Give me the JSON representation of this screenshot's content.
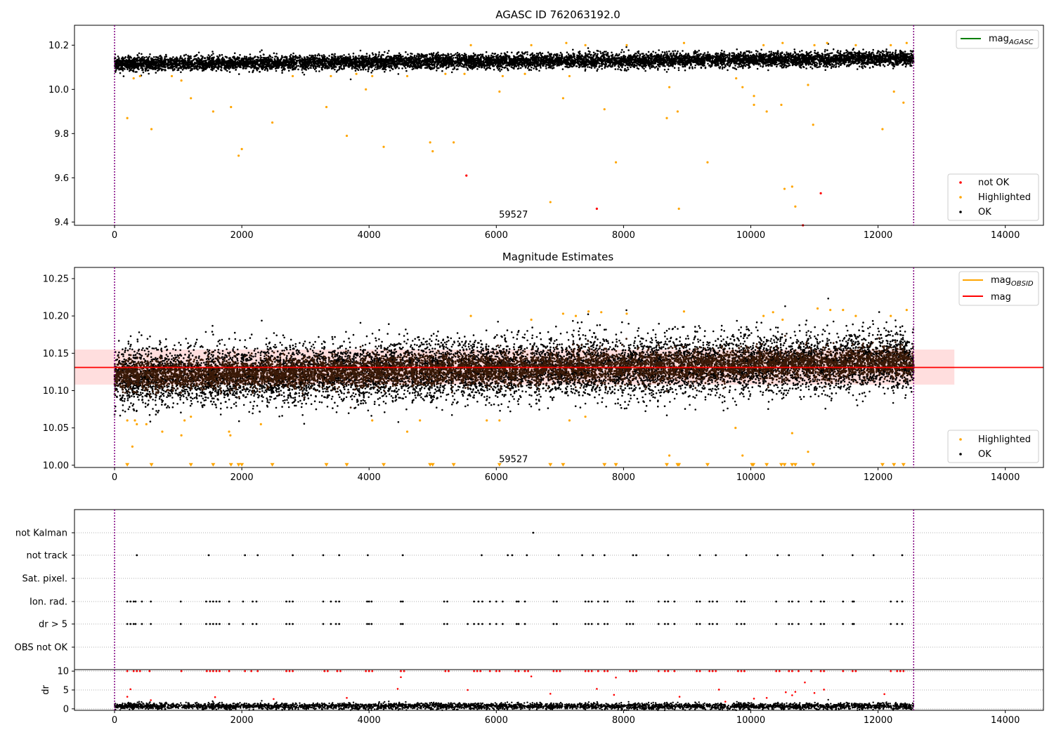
{
  "chart_data": [
    {
      "type": "scatter",
      "title": "AGASC ID 762063192.0",
      "xlabel": "",
      "ylabel": "",
      "xlim": [
        -630,
        14600
      ],
      "ylim": [
        9.385,
        10.29
      ],
      "xticks": [
        0,
        2000,
        4000,
        6000,
        8000,
        10000,
        12000,
        14000
      ],
      "yticks": [
        9.4,
        9.6,
        9.8,
        10.0,
        10.2
      ],
      "ytick_labels": [
        "9.4",
        "9.6",
        "9.8",
        "10.0",
        "10.2"
      ],
      "vlines": [
        0,
        12560
      ],
      "annotation": {
        "text": "59527",
        "x": 6270,
        "y": 9.42
      },
      "legend_lines": [
        {
          "label": "mag",
          "sub": "AGASC",
          "color": "#008000"
        }
      ],
      "legend_points": [
        {
          "label": "not OK",
          "color": "#ff0000"
        },
        {
          "label": "Highlighted",
          "color": "#ffa500"
        },
        {
          "label": "OK",
          "color": "#000000"
        }
      ],
      "ok_band": {
        "x_start": 0,
        "x_end": 12560,
        "center_start": 10.115,
        "center_end": 10.14,
        "sigma": 0.016,
        "count": 9000
      },
      "series": [
        {
          "name": "Highlighted",
          "color": "#ffa500",
          "points": [
            [
              200,
              9.87
            ],
            [
              580,
              9.82
            ],
            [
              1200,
              9.96
            ],
            [
              1550,
              9.9
            ],
            [
              1830,
              9.92
            ],
            [
              1950,
              9.7
            ],
            [
              2000,
              9.73
            ],
            [
              2480,
              9.85
            ],
            [
              3330,
              9.92
            ],
            [
              3650,
              9.79
            ],
            [
              3950,
              10.0
            ],
            [
              4230,
              9.74
            ],
            [
              4960,
              9.76
            ],
            [
              5000,
              9.72
            ],
            [
              5330,
              9.76
            ],
            [
              6050,
              9.99
            ],
            [
              6850,
              9.49
            ],
            [
              7050,
              9.96
            ],
            [
              7700,
              9.91
            ],
            [
              7880,
              9.67
            ],
            [
              8680,
              9.87
            ],
            [
              8720,
              10.01
            ],
            [
              8850,
              9.9
            ],
            [
              8870,
              9.46
            ],
            [
              9320,
              9.67
            ],
            [
              9770,
              10.05
            ],
            [
              9870,
              10.01
            ],
            [
              10050,
              9.97
            ],
            [
              10050,
              9.93
            ],
            [
              10250,
              9.9
            ],
            [
              10480,
              9.93
            ],
            [
              10530,
              9.55
            ],
            [
              10650,
              9.56
            ],
            [
              10700,
              9.47
            ],
            [
              10900,
              10.02
            ],
            [
              10980,
              9.84
            ],
            [
              12070,
              9.82
            ],
            [
              12250,
              9.99
            ],
            [
              12400,
              9.94
            ],
            [
              300,
              10.05
            ],
            [
              400,
              10.06
            ],
            [
              900,
              10.06
            ],
            [
              1050,
              10.04
            ],
            [
              2800,
              10.06
            ],
            [
              4050,
              10.06
            ],
            [
              5500,
              10.07
            ],
            [
              6450,
              10.07
            ],
            [
              7150,
              10.06
            ],
            [
              5600,
              10.2
            ],
            [
              6550,
              10.2
            ],
            [
              7100,
              10.21
            ],
            [
              7400,
              10.2
            ],
            [
              8050,
              10.2
            ],
            [
              8950,
              10.21
            ],
            [
              10200,
              10.2
            ],
            [
              10500,
              10.21
            ],
            [
              11000,
              10.2
            ],
            [
              11200,
              10.21
            ],
            [
              11650,
              10.2
            ],
            [
              12200,
              10.2
            ],
            [
              12450,
              10.21
            ],
            [
              6100,
              10.06
            ],
            [
              3400,
              10.06
            ],
            [
              3800,
              10.07
            ],
            [
              4600,
              10.06
            ],
            [
              5200,
              10.07
            ]
          ]
        },
        {
          "name": "not OK",
          "color": "#ff0000",
          "points": [
            [
              5530,
              9.61
            ],
            [
              7580,
              9.46
            ],
            [
              10820,
              9.385
            ],
            [
              11100,
              9.53
            ]
          ]
        }
      ]
    },
    {
      "type": "scatter",
      "title": "Magnitude Estimates",
      "xlabel": "",
      "ylabel": "",
      "xlim": [
        -630,
        14600
      ],
      "ylim": [
        9.997,
        10.265
      ],
      "xticks": [
        0,
        2000,
        4000,
        6000,
        8000,
        10000,
        12000,
        14000
      ],
      "yticks": [
        10.0,
        10.05,
        10.1,
        10.15,
        10.2,
        10.25
      ],
      "ytick_labels": [
        "10.00",
        "10.05",
        "10.10",
        "10.15",
        "10.20",
        "10.25"
      ],
      "vlines": [
        0,
        12560
      ],
      "annotation": {
        "text": "59527",
        "x": 6270,
        "y": 10.004
      },
      "hline": {
        "label": "mag",
        "value": 10.131,
        "color": "#ff0000"
      },
      "hband": {
        "low": 10.108,
        "high": 10.155,
        "x_end": 13200
      },
      "legend_lines": [
        {
          "label": "mag",
          "sub": "OBSID",
          "color": "#ffa500"
        },
        {
          "label": "mag",
          "sub": "",
          "color": "#ff0000"
        }
      ],
      "legend_points": [
        {
          "label": "Highlighted",
          "color": "#ffa500"
        },
        {
          "label": "OK",
          "color": "#000000"
        }
      ],
      "ok_band": {
        "x_start": 0,
        "x_end": 12560,
        "center_start": 10.118,
        "center_end": 10.14,
        "sigma": 0.02,
        "count": 10000
      },
      "brown_band": {
        "x_start": 0,
        "x_end": 12560,
        "center_start": 10.12,
        "center_end": 10.138,
        "sigma": 0.01,
        "count": 7000,
        "color": "#3a1a08"
      },
      "series": [
        {
          "name": "Highlighted",
          "color": "#ffa500",
          "points": [
            [
              200,
              10.06
            ],
            [
              280,
              10.025
            ],
            [
              320,
              10.06
            ],
            [
              350,
              10.055
            ],
            [
              500,
              10.055
            ],
            [
              750,
              10.045
            ],
            [
              1050,
              10.04
            ],
            [
              1100,
              10.06
            ],
            [
              1200,
              10.065
            ],
            [
              1800,
              10.045
            ],
            [
              1820,
              10.04
            ],
            [
              2300,
              10.055
            ],
            [
              4050,
              10.06
            ],
            [
              4600,
              10.045
            ],
            [
              4800,
              10.06
            ],
            [
              5850,
              10.06
            ],
            [
              6050,
              10.06
            ],
            [
              7150,
              10.06
            ],
            [
              7400,
              10.065
            ],
            [
              9760,
              10.05
            ],
            [
              9870,
              10.013
            ],
            [
              10650,
              10.043
            ],
            [
              10900,
              10.018
            ],
            [
              8720,
              10.013
            ],
            [
              5600,
              10.2
            ],
            [
              6550,
              10.195
            ],
            [
              7050,
              10.203
            ],
            [
              7250,
              10.2
            ],
            [
              7450,
              10.206
            ],
            [
              7650,
              10.205
            ],
            [
              8050,
              10.203
            ],
            [
              8950,
              10.206
            ],
            [
              10200,
              10.2
            ],
            [
              10350,
              10.205
            ],
            [
              10500,
              10.195
            ],
            [
              11050,
              10.21
            ],
            [
              11250,
              10.208
            ],
            [
              11450,
              10.208
            ],
            [
              11650,
              10.2
            ],
            [
              12200,
              10.2
            ],
            [
              12450,
              10.208
            ]
          ]
        }
      ],
      "floor_markers": {
        "y": 10.0,
        "color": "#ffa500",
        "x": [
          200,
          580,
          1200,
          1550,
          1830,
          1950,
          2000,
          2480,
          3330,
          3650,
          4230,
          4960,
          5000,
          5330,
          6050,
          6850,
          7050,
          7700,
          7880,
          8680,
          8850,
          8870,
          9320,
          10020,
          10040,
          10250,
          10480,
          10530,
          10650,
          10700,
          10980,
          12070,
          12250,
          12400
        ]
      }
    },
    {
      "type": "scatter",
      "title": "",
      "xlabel": "",
      "ylabel": "",
      "xlim": [
        -630,
        14600
      ],
      "categories": [
        "not Kalman",
        "not track",
        "Sat. pixel.",
        "Ion. rad.",
        "dr > 5",
        "OBS not OK"
      ],
      "vlines": [
        0,
        12560
      ],
      "flags": {
        "not Kalman": [
          6580
        ],
        "not track": [
          350,
          1480,
          2050,
          2250,
          2800,
          3280,
          3530,
          3980,
          4530,
          5770,
          6180,
          6250,
          6480,
          6980,
          7350,
          7520,
          7700,
          8150,
          8200,
          8700,
          9200,
          9450,
          9930,
          10420,
          10600,
          11130,
          11600,
          11930,
          12380
        ],
        "Sat. pixel.": [],
        "Ion. rad.": [
          200,
          250,
          300,
          330,
          430,
          570,
          1040,
          1440,
          1500,
          1550,
          1600,
          1650,
          1800,
          2020,
          2170,
          2230,
          2700,
          2750,
          2800,
          3280,
          3400,
          3480,
          3530,
          3970,
          4000,
          4040,
          4500,
          4530,
          5180,
          5230,
          5650,
          5720,
          5780,
          5900,
          6000,
          6100,
          6320,
          6350,
          6450,
          6900,
          6950,
          7400,
          7450,
          7500,
          7600,
          7700,
          7750,
          8050,
          8100,
          8150,
          8550,
          8650,
          8700,
          8800,
          9150,
          9200,
          9350,
          9400,
          9470,
          9780,
          9850,
          9900,
          10400,
          10600,
          10650,
          10750,
          10950,
          11100,
          11150,
          11450,
          11600,
          11620,
          12200,
          12300,
          12380
        ],
        "dr > 5": [
          200,
          250,
          300,
          330,
          430,
          570,
          1040,
          1440,
          1500,
          1550,
          1600,
          1650,
          1800,
          2020,
          2170,
          2230,
          2700,
          2750,
          2800,
          3280,
          3400,
          3480,
          3530,
          3970,
          4000,
          4040,
          4500,
          4530,
          5180,
          5230,
          5550,
          5650,
          5720,
          5780,
          5900,
          6000,
          6100,
          6320,
          6350,
          6450,
          6900,
          6950,
          7400,
          7450,
          7500,
          7600,
          7700,
          7750,
          8050,
          8100,
          8150,
          8550,
          8650,
          8700,
          8800,
          9150,
          9200,
          9350,
          9400,
          9470,
          9780,
          9850,
          9900,
          10400,
          10600,
          10650,
          10750,
          10950,
          11100,
          11150,
          11450,
          11600,
          11620,
          12200,
          12300,
          12380
        ],
        "OBS not OK": []
      }
    },
    {
      "type": "scatter",
      "title": "",
      "xlabel": "",
      "ylabel": "dr",
      "xlim": [
        -630,
        14600
      ],
      "ylim": [
        -0.4,
        10.4
      ],
      "xticks": [
        0,
        2000,
        4000,
        6000,
        8000,
        10000,
        12000,
        14000
      ],
      "yticks": [
        0,
        5,
        10
      ],
      "ytick_labels": [
        "0",
        "5",
        "10"
      ],
      "vlines": [
        0,
        12560
      ],
      "series": [
        {
          "name": "dr > 5",
          "color": "#ff0000",
          "points": [
            [
              200,
              3.2
            ],
            [
              250,
              5.2
            ],
            [
              570,
              2.3
            ],
            [
              1580,
              3.1
            ],
            [
              2500,
              2.6
            ],
            [
              3650,
              2.9
            ],
            [
              4450,
              5.3
            ],
            [
              4500,
              8.4
            ],
            [
              5550,
              5.0
            ],
            [
              6550,
              8.6
            ],
            [
              6850,
              4.0
            ],
            [
              7580,
              5.3
            ],
            [
              7850,
              3.7
            ],
            [
              7880,
              8.3
            ],
            [
              8880,
              3.2
            ],
            [
              9600,
              1.9
            ],
            [
              9500,
              5.1
            ],
            [
              10050,
              2.7
            ],
            [
              10250,
              2.9
            ],
            [
              10550,
              4.4
            ],
            [
              10650,
              3.6
            ],
            [
              10700,
              4.5
            ],
            [
              10850,
              7.0
            ],
            [
              11000,
              4.2
            ],
            [
              11150,
              5.1
            ],
            [
              12100,
              3.9
            ]
          ]
        }
      ],
      "red_top": {
        "y": 10.0,
        "x": [
          200,
          300,
          350,
          400,
          550,
          1050,
          1450,
          1500,
          1550,
          1600,
          1650,
          1800,
          2050,
          2150,
          2250,
          2700,
          2750,
          2800,
          3300,
          3350,
          3500,
          3550,
          3950,
          4000,
          4050,
          4500,
          4550,
          5200,
          5250,
          5650,
          5700,
          5750,
          5900,
          6000,
          6050,
          6300,
          6350,
          6450,
          6500,
          6900,
          6950,
          7000,
          7400,
          7450,
          7500,
          7600,
          7700,
          7750,
          8100,
          8150,
          8200,
          8550,
          8650,
          8700,
          8800,
          9150,
          9200,
          9350,
          9400,
          9450,
          9800,
          9850,
          9900,
          10400,
          10450,
          10600,
          10650,
          10750,
          10950,
          11100,
          11150,
          11450,
          11600,
          11650,
          12200,
          12300,
          12350,
          12400
        ]
      },
      "ok_band": {
        "x_start": 0,
        "x_end": 12560,
        "center_start": 0.7,
        "center_end": 0.7,
        "sigma": 0.4,
        "count": 4000
      }
    }
  ]
}
